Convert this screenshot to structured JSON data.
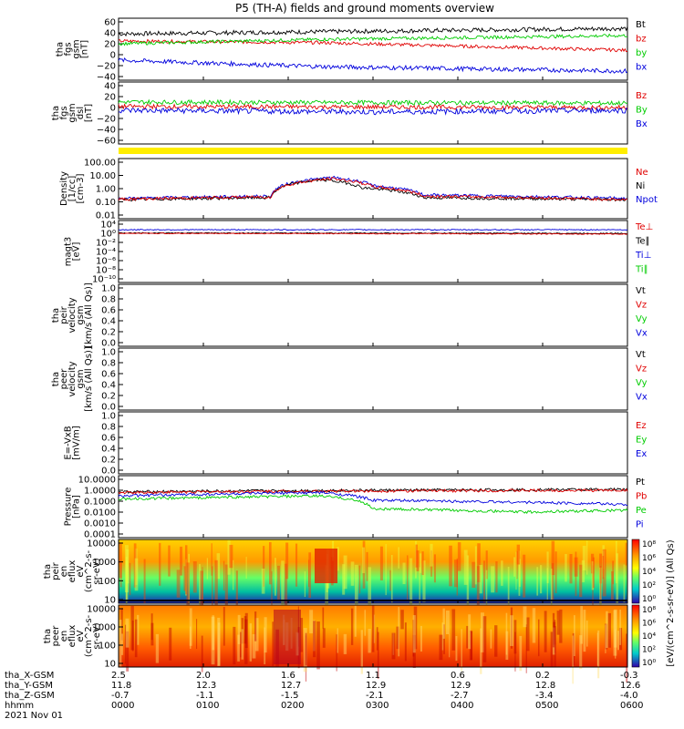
{
  "title": "P5 (TH-A) fields and ground moments overview",
  "colors": {
    "black": "#000000",
    "red": "#e00000",
    "green": "#00cc00",
    "blue": "#0000dd",
    "yellow": "#ffee00"
  },
  "chart_data": [
    {
      "type": "line",
      "id": "fgs",
      "ylabel": [
        "tha",
        "fgs",
        "gsm",
        "[nT]"
      ],
      "yticks": [
        "60",
        "40",
        "20",
        "0",
        "−20",
        "−40"
      ],
      "ylim": [
        -40,
        60
      ],
      "legend": [
        {
          "text": "Bt",
          "color": "black"
        },
        {
          "text": "bz",
          "color": "red"
        },
        {
          "text": "by",
          "color": "green"
        },
        {
          "text": "bx",
          "color": "blue"
        }
      ],
      "series": [
        {
          "color": "black",
          "base": 38,
          "noise": 4,
          "trend": [
            [
              0,
              38
            ],
            [
              0.4,
              42
            ],
            [
              1,
              48
            ]
          ]
        },
        {
          "color": "red",
          "base": 22,
          "noise": 3,
          "trend": [
            [
              0,
              25
            ],
            [
              0.4,
              22
            ],
            [
              1,
              8
            ]
          ]
        },
        {
          "color": "green",
          "base": 20,
          "noise": 3,
          "trend": [
            [
              0,
              20
            ],
            [
              0.4,
              28
            ],
            [
              1,
              35
            ]
          ]
        },
        {
          "color": "blue",
          "base": -10,
          "noise": 4,
          "trend": [
            [
              0,
              -10
            ],
            [
              0.4,
              -22
            ],
            [
              1,
              -30
            ]
          ]
        }
      ]
    },
    {
      "type": "line",
      "id": "fgs_dsl",
      "ylabel": [
        "tha",
        "fgs",
        "gsm",
        "dsl",
        "[nT]"
      ],
      "yticks": [
        "40",
        "20",
        "0",
        "−20",
        "−40",
        "−60"
      ],
      "ylim": [
        -60,
        40
      ],
      "legend": [
        {
          "text": "Bz",
          "color": "red"
        },
        {
          "text": "By",
          "color": "green"
        },
        {
          "text": "Bx",
          "color": "blue"
        }
      ],
      "series": [
        {
          "color": "green",
          "base": 10,
          "noise": 4,
          "trend": [
            [
              0,
              10
            ],
            [
              1,
              8
            ]
          ]
        },
        {
          "color": "red",
          "base": 0,
          "noise": 4,
          "trend": [
            [
              0,
              2
            ],
            [
              1,
              0
            ]
          ]
        },
        {
          "color": "blue",
          "base": -5,
          "noise": 5,
          "trend": [
            [
              0,
              -5
            ],
            [
              0.5,
              -8
            ],
            [
              1,
              -5
            ]
          ]
        }
      ]
    },
    {
      "type": "line",
      "id": "density",
      "scale": "log",
      "ylabel": [
        "Density",
        "[1/cc]",
        "[cm-3]"
      ],
      "yticks": [
        "100.00",
        "10.00",
        "1.00",
        "0.10",
        "0.01"
      ],
      "ylim": [
        0.01,
        300
      ],
      "legend": [
        {
          "text": "Ne",
          "color": "red"
        },
        {
          "text": "Ni",
          "color": "black"
        },
        {
          "text": "Npot",
          "color": "blue"
        }
      ],
      "series": [
        {
          "color": "blue",
          "base": 0.25,
          "trend": [
            [
              0,
              0.25
            ],
            [
              0.3,
              0.4
            ],
            [
              0.42,
              15
            ],
            [
              0.5,
              3
            ],
            [
              0.6,
              0.5
            ],
            [
              1,
              0.25
            ]
          ]
        },
        {
          "color": "black",
          "base": 0.2,
          "trend": [
            [
              0,
              0.2
            ],
            [
              0.3,
              0.3
            ],
            [
              0.4,
              10
            ],
            [
              0.48,
              2
            ],
            [
              0.6,
              0.3
            ],
            [
              1,
              0.2
            ]
          ]
        },
        {
          "color": "red",
          "base": 0.2,
          "trend": [
            [
              0,
              0.22
            ],
            [
              0.3,
              0.35
            ],
            [
              0.42,
              12
            ],
            [
              0.5,
              2.5
            ],
            [
              0.6,
              0.4
            ],
            [
              1,
              0.2
            ]
          ]
        }
      ]
    },
    {
      "type": "line",
      "id": "temperature",
      "scale": "log",
      "ylabel": [
        "magt3",
        "[eV]"
      ],
      "yticks": [
        "10⁴",
        "10⁰",
        "10⁻²",
        "10⁻⁴",
        "10⁻⁶",
        "10⁻⁸",
        "10⁻¹⁰"
      ],
      "ylim": [
        1e-10,
        100000
      ],
      "legend": [
        {
          "text": "Te⊥",
          "color": "red"
        },
        {
          "text": "Te∥",
          "color": "black"
        },
        {
          "text": "Ti⊥",
          "color": "blue"
        },
        {
          "text": "Ti∥",
          "color": "green"
        }
      ],
      "series": [
        {
          "color": "blue",
          "base": 3000,
          "trend": [
            [
              0,
              3000
            ],
            [
              1,
              3000
            ]
          ]
        },
        {
          "color": "black",
          "base": 300,
          "trend": [
            [
              0,
              400
            ],
            [
              1,
              300
            ]
          ]
        },
        {
          "color": "red",
          "base": 200,
          "trend": [
            [
              0,
              300
            ],
            [
              1,
              200
            ]
          ]
        }
      ]
    },
    {
      "type": "line",
      "id": "peir_velocity",
      "ylabel": [
        "tha",
        "peir",
        "velocity",
        "gsm",
        "[km/s (All Qs)]"
      ],
      "yticks": [
        "1.0",
        "0.8",
        "0.6",
        "0.4",
        "0.2",
        "0.0"
      ],
      "ylim": [
        0,
        1
      ],
      "legend": [
        {
          "text": "Vt",
          "color": "black"
        },
        {
          "text": "Vz",
          "color": "red"
        },
        {
          "text": "Vy",
          "color": "green"
        },
        {
          "text": "Vx",
          "color": "blue"
        }
      ],
      "series": []
    },
    {
      "type": "line",
      "id": "peer_velocity",
      "ylabel": [
        "tha",
        "peer",
        "velocity",
        "gsm",
        "[km/s (All Qs)]"
      ],
      "yticks": [
        "1.0",
        "0.8",
        "0.6",
        "0.4",
        "0.2",
        "0.0"
      ],
      "ylim": [
        0,
        1
      ],
      "legend": [
        {
          "text": "Vt",
          "color": "black"
        },
        {
          "text": "Vz",
          "color": "red"
        },
        {
          "text": "Vy",
          "color": "green"
        },
        {
          "text": "Vx",
          "color": "blue"
        }
      ],
      "series": []
    },
    {
      "type": "line",
      "id": "efield",
      "ylabel": [
        "E=-VxB",
        "[mV/m]"
      ],
      "yticks": [
        "1.0",
        "0.8",
        "0.6",
        "0.4",
        "0.2",
        "0.0"
      ],
      "ylim": [
        0,
        1
      ],
      "legend": [
        {
          "text": "Ez",
          "color": "red"
        },
        {
          "text": "Ey",
          "color": "green"
        },
        {
          "text": "Ex",
          "color": "blue"
        }
      ],
      "series": []
    },
    {
      "type": "line",
      "id": "pressure",
      "scale": "log",
      "ylabel": [
        "Pressure",
        "[nPa]"
      ],
      "yticks": [
        "10.0000",
        "1.0000",
        "0.1000",
        "0.0100",
        "0.0010",
        "0.0001"
      ],
      "ylim": [
        0.0001,
        10
      ],
      "legend": [
        {
          "text": "Pt",
          "color": "black"
        },
        {
          "text": "Pb",
          "color": "red"
        },
        {
          "text": "Pe",
          "color": "green"
        },
        {
          "text": "Pi",
          "color": "blue"
        }
      ],
      "series": [
        {
          "color": "black",
          "base": 0.9,
          "trend": [
            [
              0,
              0.7
            ],
            [
              0.3,
              0.9
            ],
            [
              1,
              1.2
            ]
          ]
        },
        {
          "color": "red",
          "base": 0.8,
          "trend": [
            [
              0,
              0.6
            ],
            [
              0.3,
              0.8
            ],
            [
              1,
              1.0
            ]
          ]
        },
        {
          "color": "blue",
          "base": 0.1,
          "trend": [
            [
              0,
              0.3
            ],
            [
              0.4,
              0.6
            ],
            [
              0.5,
              0.12
            ],
            [
              0.8,
              0.08
            ],
            [
              1,
              0.05
            ]
          ]
        },
        {
          "color": "green",
          "base": 0.02,
          "trend": [
            [
              0,
              0.15
            ],
            [
              0.4,
              0.3
            ],
            [
              0.5,
              0.02
            ],
            [
              0.8,
              0.01
            ],
            [
              1,
              0.015
            ]
          ]
        }
      ]
    },
    {
      "type": "heatmap",
      "id": "peir_en",
      "ylabel": [
        "tha",
        "peir",
        "en",
        "eflux",
        "eV",
        "(cm^2-s-",
        "sr-eV)"
      ],
      "yticks": [
        "10000",
        "1000",
        "100",
        "10"
      ],
      "colorbar": [
        "10⁸",
        "10⁶",
        "10⁴",
        "10²",
        "10⁰"
      ]
    },
    {
      "type": "heatmap",
      "id": "peer_en",
      "ylabel": [
        "tha",
        "peer",
        "en",
        "eflux",
        "eV",
        "(cm^2-s-",
        "sr-eV)"
      ],
      "yticks": [
        "10000",
        "1000",
        "100",
        "10"
      ],
      "colorbar": [
        "10⁸",
        "10⁶",
        "10⁴",
        "10²",
        "10⁰"
      ]
    }
  ],
  "colorbar_label": "[eV/(cm^2-s-sr-eV)] (All Qs)",
  "xaxis": {
    "row_labels": [
      "tha_X-GSM",
      "tha_Y-GSM",
      "tha_Z-GSM",
      "hhmm",
      "2021 Nov 01"
    ],
    "ticks": [
      {
        "x": "2.5",
        "y": "11.8",
        "z": "-0.7",
        "t": "0000"
      },
      {
        "x": "2.0",
        "y": "12.3",
        "z": "-1.1",
        "t": "0100"
      },
      {
        "x": "1.6",
        "y": "12.7",
        "z": "-1.5",
        "t": "0200"
      },
      {
        "x": "1.1",
        "y": "12.9",
        "z": "-2.1",
        "t": "0300"
      },
      {
        "x": "0.6",
        "y": "12.9",
        "z": "-2.7",
        "t": "0400"
      },
      {
        "x": "0.2",
        "y": "12.8",
        "z": "-3.4",
        "t": "0500"
      },
      {
        "x": "-0.3",
        "y": "12.6",
        "z": "-4.0",
        "t": "0600"
      }
    ]
  }
}
